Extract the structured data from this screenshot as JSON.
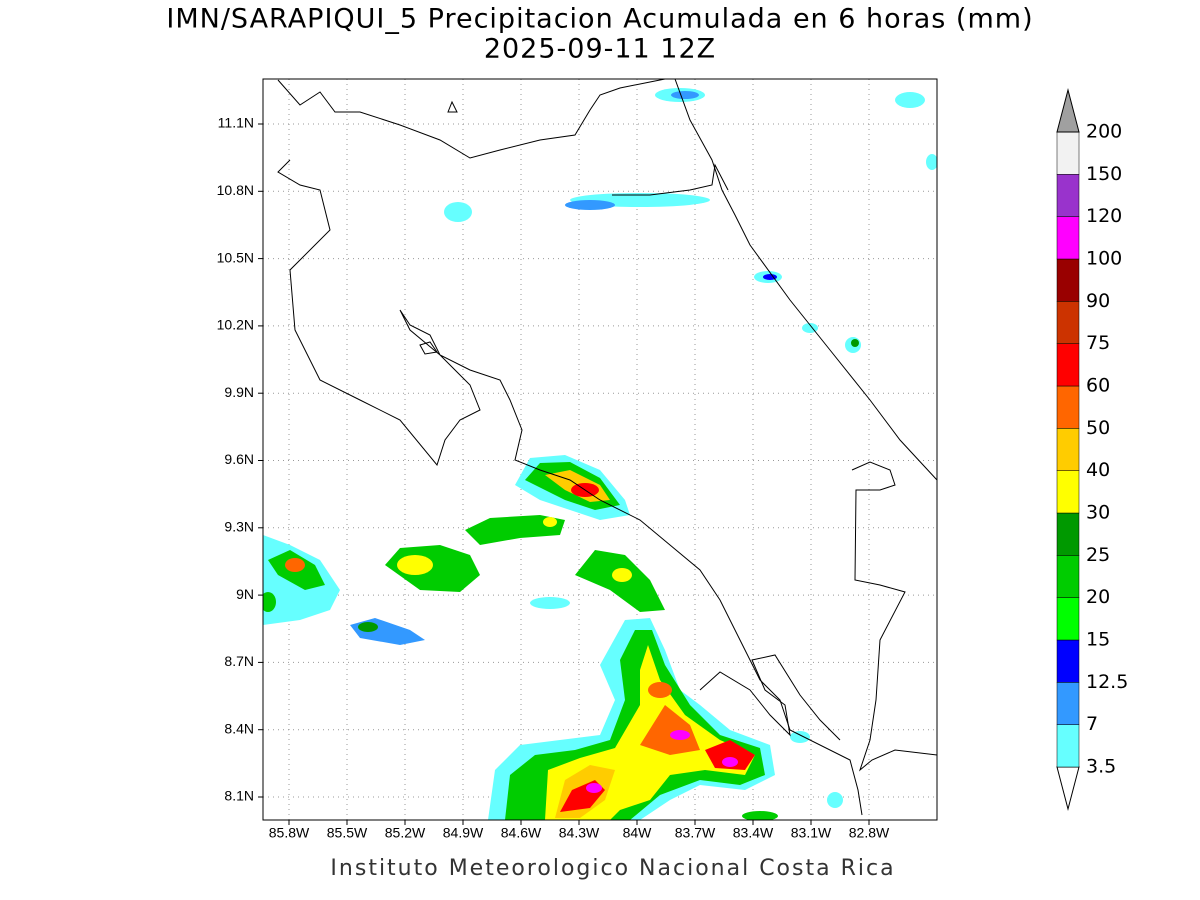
{
  "title": "IMN/SARAPIQUI_5 Precipitacion Acumulada en 6 horas (mm)",
  "subtitle": "2025-09-11 12Z",
  "lat_labels": [
    "11.1N",
    "10.8N",
    "10.5N",
    "10.2N",
    "9.9N",
    "9.6N",
    "9.3N",
    "9N",
    "8.7N",
    "8.4N",
    "8.1N"
  ],
  "lon_labels": [
    "85.8W",
    "85.5W",
    "85.2W",
    "84.9W",
    "84.6W",
    "84.3W",
    "84W",
    "83.7W",
    "83.4W",
    "83.1W",
    "82.8W"
  ],
  "colorbar": {
    "labels": [
      "3.5",
      "7",
      "12.5",
      "15",
      "20",
      "25",
      "30",
      "40",
      "50",
      "60",
      "75",
      "90",
      "100",
      "120",
      "150",
      "200"
    ],
    "colors": [
      "#ffffff",
      "#66ffff",
      "#3399ff",
      "#0000ff",
      "#00ff00",
      "#00cc00",
      "#009900",
      "#ffff00",
      "#ffcc00",
      "#ff6600",
      "#ff0000",
      "#cc3300",
      "#990000",
      "#ff00ff",
      "#9933cc",
      "#f2f2f2",
      "#a0a0a0"
    ]
  },
  "footer": "Instituto Meteorologico Nacional Costa Rica"
}
